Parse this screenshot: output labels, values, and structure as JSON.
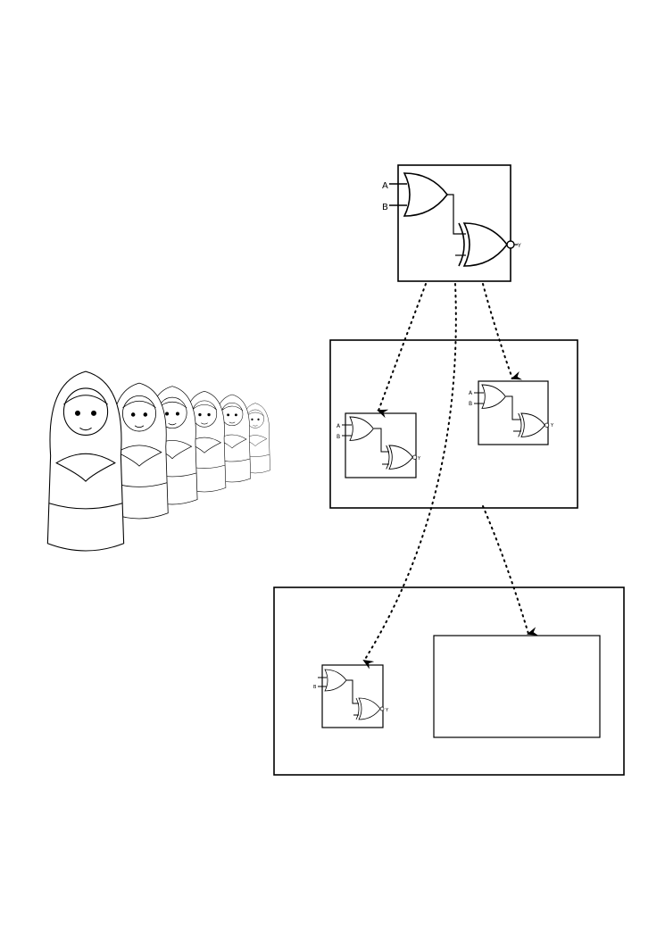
{
  "diagram": {
    "top_circuit": {
      "input_a": "A",
      "input_b": "B",
      "output_y": "Y"
    },
    "mid_left_circuit": {
      "input_a": "A",
      "input_b": "B",
      "output_y": "Y"
    },
    "mid_right_circuit": {
      "input_a": "A",
      "input_b": "B",
      "output_y": "Y"
    },
    "bottom_left_circuit": {
      "input_a": "",
      "input_b": "B",
      "output_y": "Y"
    },
    "dolls": {
      "count": 6
    },
    "colors": {
      "stroke": "#000000",
      "background": "#ffffff",
      "arrow": "#000000"
    }
  }
}
